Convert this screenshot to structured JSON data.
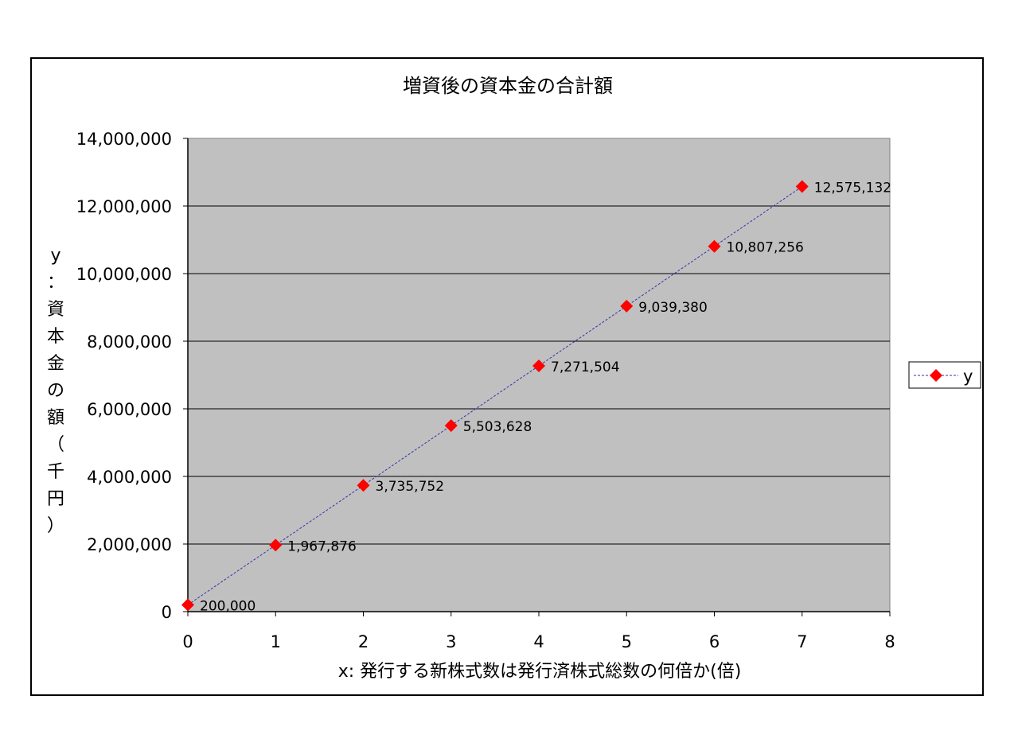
{
  "chart_data": {
    "type": "line",
    "title": "増資後の資本金の合計額",
    "xlabel": "x: 発行する新株式数は発行済株式総数の何倍か(倍)",
    "ylabel": "y：資本金の額（千円）",
    "x": [
      0,
      1,
      2,
      3,
      4,
      5,
      6,
      7
    ],
    "series": [
      {
        "name": "y",
        "values": [
          200000,
          1967876,
          3735752,
          5503628,
          7271504,
          9039380,
          10807256,
          12575132
        ],
        "labels": [
          "200,000",
          "1,967,876",
          "3,735,752",
          "5,503,628",
          "7,271,504",
          "9,039,380",
          "10,807,256",
          "12,575,132"
        ]
      }
    ],
    "xlim": [
      0,
      8
    ],
    "ylim": [
      0,
      14000000
    ],
    "x_ticks": [
      "0",
      "1",
      "2",
      "3",
      "4",
      "5",
      "6",
      "7",
      "8"
    ],
    "y_ticks": [
      "0",
      "2,000,000",
      "4,000,000",
      "6,000,000",
      "8,000,000",
      "10,000,000",
      "12,000,000",
      "14,000,000"
    ],
    "grid": "horizontal",
    "legend": "right",
    "colors": {
      "plot_bg": "#c0c0c0",
      "marker": "#ff0000",
      "line": "#3333aa"
    }
  }
}
